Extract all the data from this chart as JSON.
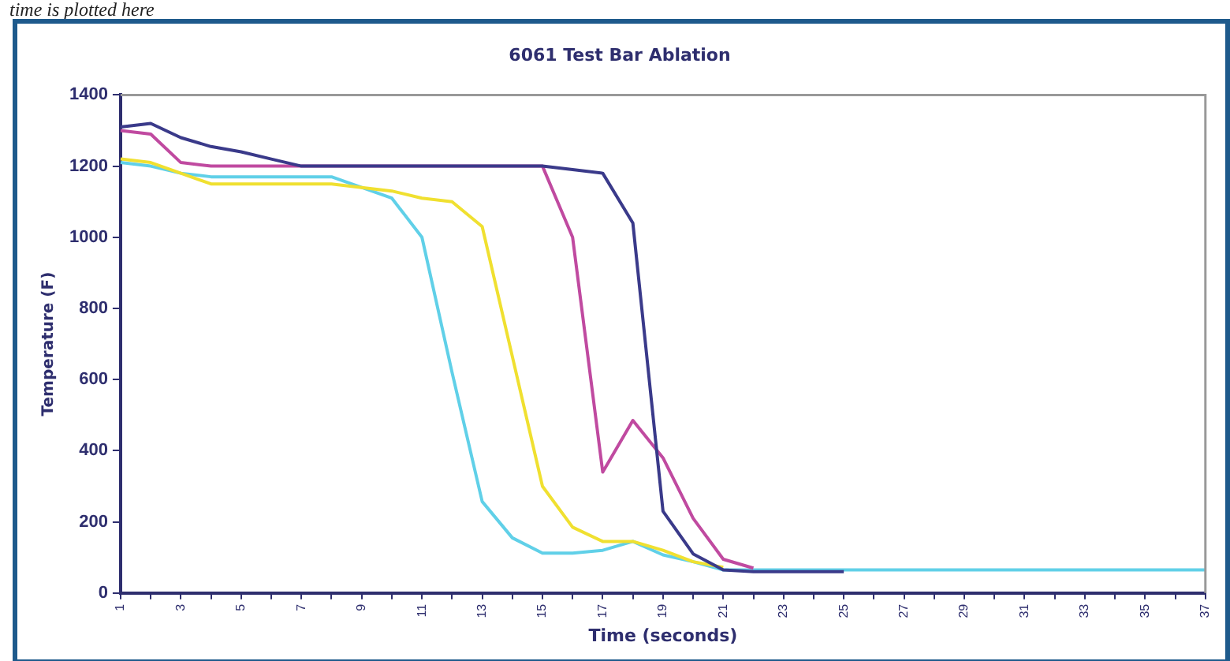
{
  "chart_data": {
    "type": "line",
    "title": "6061 Test Bar Ablation",
    "xlabel": "Time (seconds)",
    "ylabel": "Temperature (F)",
    "annotations": [
      "time is plotted here"
    ],
    "categories": [
      "1",
      null,
      "3",
      null,
      "5",
      null,
      "7",
      null,
      "9",
      null,
      "11",
      null,
      "13",
      null,
      "15",
      null,
      "17",
      null,
      "19",
      null,
      "21",
      null,
      "23",
      null,
      "25",
      null,
      "27",
      null,
      "29",
      null,
      "31",
      null,
      "33",
      null,
      "35",
      null,
      "37"
    ],
    "ylim": [
      0,
      1400
    ],
    "yticks": [
      0,
      200,
      400,
      600,
      800,
      1000,
      1200,
      1400
    ],
    "grid": false,
    "legend": false,
    "marker": "none",
    "line_style": "solid",
    "series": [
      {
        "color": "#3a3a8a",
        "values": [
          1310,
          1320,
          1280,
          1255,
          1240,
          1220,
          1200,
          1200,
          1200,
          1200,
          1200,
          1200,
          1200,
          1200,
          1200,
          1190,
          1180,
          1040,
          230,
          110,
          65,
          60,
          60,
          60,
          60,
          null,
          null,
          null,
          null,
          null,
          null,
          null,
          null,
          null,
          null,
          null,
          null
        ]
      },
      {
        "color": "#c04aa0",
        "values": [
          1300,
          1290,
          1210,
          1200,
          1200,
          1200,
          1200,
          1200,
          1200,
          1200,
          1200,
          1200,
          1200,
          1200,
          1200,
          1000,
          340,
          485,
          380,
          210,
          95,
          70,
          null,
          null,
          null,
          null,
          null,
          null,
          null,
          null,
          null,
          null,
          null,
          null,
          null,
          null,
          null
        ]
      },
      {
        "color": "#f0e030",
        "values": [
          1220,
          1210,
          1180,
          1150,
          1150,
          1150,
          1150,
          1150,
          1140,
          1130,
          1110,
          1100,
          1030,
          665,
          300,
          185,
          145,
          145,
          120,
          88,
          72,
          null,
          null,
          null,
          null,
          null,
          null,
          null,
          null,
          null,
          null,
          null,
          null,
          null,
          null,
          null,
          null
        ]
      },
      {
        "color": "#60d0e8",
        "values": [
          1210,
          1200,
          1180,
          1170,
          1170,
          1170,
          1170,
          1170,
          1140,
          1110,
          1000,
          620,
          257,
          155,
          112,
          112,
          120,
          145,
          107,
          88,
          65,
          65,
          65,
          65,
          65,
          65,
          65,
          65,
          65,
          65,
          65,
          65,
          65,
          65,
          65,
          65,
          65
        ]
      }
    ]
  }
}
